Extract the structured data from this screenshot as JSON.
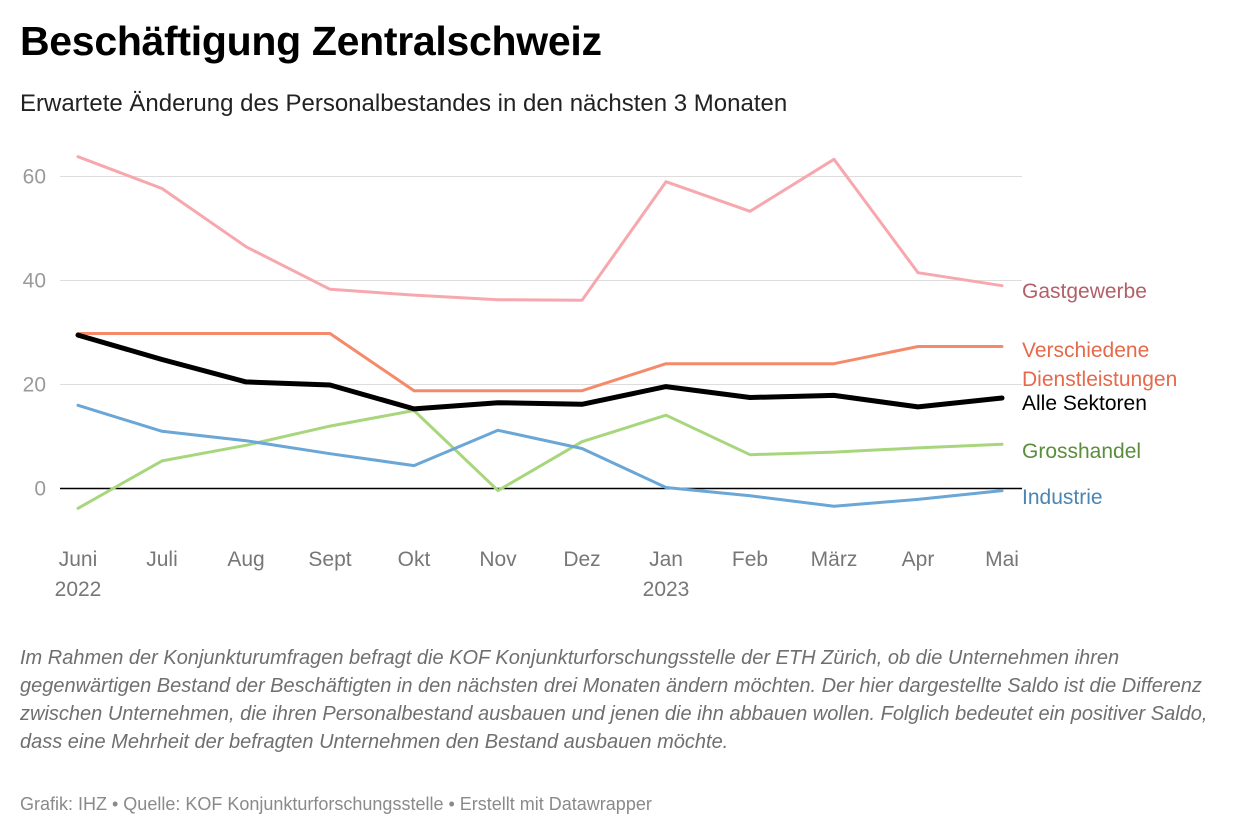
{
  "header": {
    "title": "Beschäftigung Zentralschweiz",
    "subtitle": "Erwartete Änderung des Personalbestandes in den nächsten 3 Monaten"
  },
  "notes": "Im Rahmen der Konjunkturumfragen befragt die KOF Konjunkturforschungsstelle der ETH Zürich, ob die Unternehmen ihren gegenwärtigen Bestand der Beschäftigten in den nächsten drei Monaten ändern möchten. Der hier dargestellte Saldo ist die Differenz zwischen Unternehmen, die ihren Personalbestand ausbauen und jenen die ihn abbauen wollen. Folglich bedeutet ein positiver Saldo, dass eine Mehrheit der befragten Unternehmen den Bestand ausbauen möchte.",
  "footer": "Grafik: IHZ • Quelle: KOF Konjunkturforschungsstelle • Erstellt mit Datawrapper",
  "chart_data": {
    "type": "line",
    "title": "Beschäftigung Zentralschweiz",
    "subtitle": "Erwartete Änderung des Personalbestandes in den nächsten 3 Monaten",
    "categories": [
      "Juni",
      "Juli",
      "Aug",
      "Sept",
      "Okt",
      "Nov",
      "Dez",
      "Jan",
      "Feb",
      "März",
      "Apr",
      "Mai"
    ],
    "category_years": [
      "2022",
      "",
      "",
      "",
      "",
      "",
      "",
      "2023",
      "",
      "",
      "",
      ""
    ],
    "yticks": [
      0,
      20,
      40,
      60
    ],
    "ylim": [
      -5,
      65
    ],
    "grid": true,
    "legend": "direct labels at line ends (right)",
    "series": [
      {
        "name": "Gastgewerbe",
        "color": "#f7a8ae",
        "label_color": "#b35f67",
        "width": 3,
        "values": [
          63.8,
          57.7,
          46.5,
          38.3,
          37.2,
          36.3,
          36.2,
          59.0,
          53.3,
          63.3,
          41.5,
          39.0
        ]
      },
      {
        "name": "Verschiedene Dienstleistungen",
        "label_lines": [
          "Verschiedene",
          "Dienstleistungen"
        ],
        "color": "#f58a6b",
        "label_color": "#e5694a",
        "width": 3,
        "values": [
          29.8,
          29.8,
          29.8,
          29.8,
          18.8,
          18.8,
          18.8,
          24.0,
          24.0,
          24.0,
          27.3,
          27.3
        ]
      },
      {
        "name": "Alle Sektoren",
        "color": "#000000",
        "label_color": "#000000",
        "width": 5,
        "values": [
          29.5,
          24.8,
          20.5,
          19.9,
          15.3,
          16.5,
          16.2,
          19.6,
          17.5,
          17.9,
          15.7,
          17.4
        ]
      },
      {
        "name": "Grosshandel",
        "color": "#a8d67c",
        "label_color": "#5a8e3a",
        "width": 3,
        "values": [
          -3.8,
          5.3,
          8.3,
          12.0,
          15.0,
          -0.4,
          9.0,
          14.1,
          6.5,
          7.0,
          7.8,
          8.5
        ]
      },
      {
        "name": "Industrie",
        "color": "#6aa6d6",
        "label_color": "#4a85b3",
        "width": 3,
        "values": [
          16.0,
          11.0,
          9.2,
          6.7,
          4.4,
          11.2,
          7.7,
          0.2,
          -1.4,
          -3.4,
          -2.1,
          -0.4
        ]
      }
    ]
  }
}
